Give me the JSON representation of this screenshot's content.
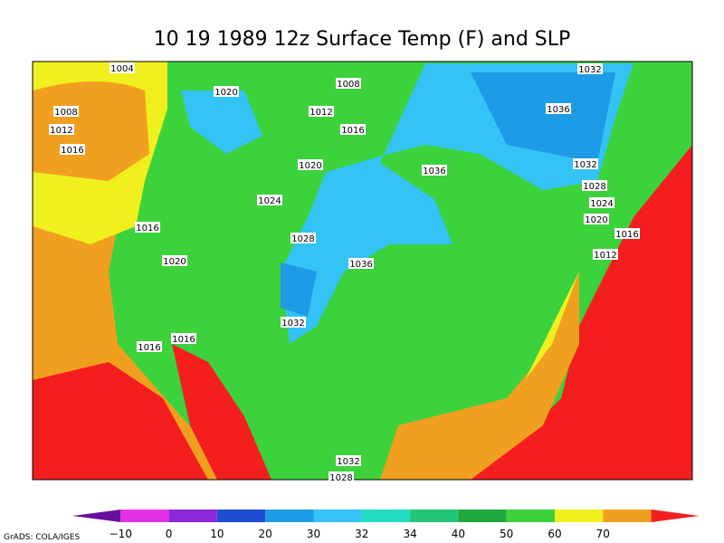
{
  "title": "10 19 1989 12z Surface Temp (F) and SLP",
  "isobar_labels": [
    "1004",
    "1008",
    "1032",
    "1020",
    "1008",
    "1012",
    "1036",
    "1012",
    "1016",
    "1016",
    "1020",
    "1036",
    "1032",
    "1028",
    "1024",
    "1024",
    "1020",
    "1016",
    "1028",
    "1016",
    "1036",
    "1012",
    "1020",
    "1032",
    "1016",
    "1016",
    "1032",
    "1028"
  ],
  "colorbar": {
    "colors": [
      "#6a0d9e",
      "#e632e6",
      "#8c28dc",
      "#1e4ed2",
      "#1e9be6",
      "#33c3f5",
      "#22dcc0",
      "#22c878",
      "#1ea83c",
      "#3cd23c",
      "#f0f01e",
      "#f0a01e",
      "#f51e1e"
    ],
    "labels": [
      "−10",
      "0",
      "10",
      "20",
      "30",
      "32",
      "34",
      "40",
      "50",
      "60",
      "70"
    ]
  },
  "footer": "GrADS: COLA/IGES"
}
